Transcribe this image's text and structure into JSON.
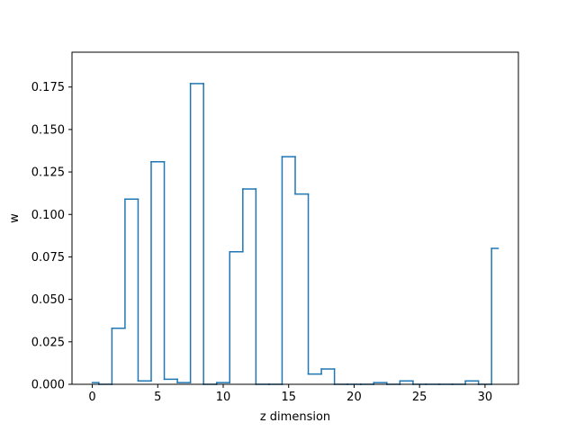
{
  "chart_data": {
    "type": "step",
    "title": "",
    "xlabel": "z dimension",
    "ylabel": "w",
    "xlim": [
      -1.55,
      32.55
    ],
    "ylim": [
      0,
      0.1955
    ],
    "x_ticks": [
      0,
      5,
      10,
      15,
      20,
      25,
      30
    ],
    "y_ticks": [
      0.0,
      0.025,
      0.05,
      0.075,
      0.1,
      0.125,
      0.15,
      0.175
    ],
    "y_tick_labels": [
      "0.000",
      "0.025",
      "0.050",
      "0.075",
      "0.100",
      "0.125",
      "0.150",
      "0.175"
    ],
    "x_tick_labels": [
      "0",
      "5",
      "10",
      "15",
      "20",
      "25",
      "30"
    ],
    "grid": false,
    "series": [
      {
        "color": "#1f77b4",
        "step_where": "mid",
        "x": [
          0,
          1,
          2,
          3,
          4,
          5,
          6,
          7,
          8,
          9,
          10,
          11,
          12,
          13,
          14,
          15,
          16,
          17,
          18,
          19,
          20,
          21,
          22,
          23,
          24,
          25,
          26,
          27,
          28,
          29,
          30,
          31
        ],
        "values": [
          0.001,
          0.0,
          0.033,
          0.109,
          0.002,
          0.131,
          0.003,
          0.001,
          0.177,
          0.0,
          0.001,
          0.078,
          0.115,
          0.0,
          0.0,
          0.134,
          0.112,
          0.006,
          0.009,
          0.0,
          0.0,
          0.0,
          0.001,
          0.0,
          0.002,
          0.0,
          0.0,
          0.0,
          0.0,
          0.002,
          0.0,
          0.08
        ]
      }
    ]
  }
}
